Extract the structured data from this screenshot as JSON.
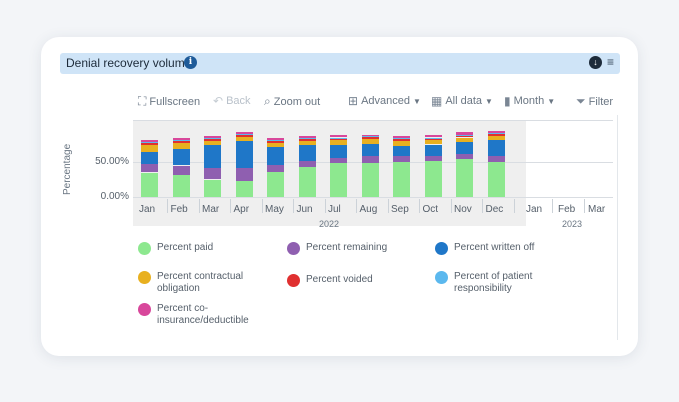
{
  "panel": {
    "title": "Denial recovery volume",
    "info_icon": "i",
    "download_icon": "↓",
    "menu_icon": "≡"
  },
  "toolbar": {
    "fullscreen": "Fullscreen",
    "back": "Back",
    "zoom_out": "Zoom out",
    "advanced": "Advanced",
    "all_data": "All data",
    "month": "Month",
    "filter": "Filter"
  },
  "colors": {
    "paid": "#8de88f",
    "remaining": "#8f5fb0",
    "written_off": "#1f77c8",
    "contractual": "#e8b020",
    "voided": "#e03030",
    "patient": "#5bb8ee",
    "coinsurance": "#d8479b"
  },
  "chart_data": {
    "type": "bar",
    "stacked": true,
    "ylabel": "Percentage",
    "yticks": [
      "0.00%",
      "50.00%"
    ],
    "categories": [
      "Jan",
      "Feb",
      "Mar",
      "Apr",
      "May",
      "Jun",
      "Jul",
      "Aug",
      "Sep",
      "Oct",
      "Nov",
      "Dec"
    ],
    "extra_ticks": [
      "Jan",
      "Feb",
      "Mar"
    ],
    "years": [
      "2022",
      "2023"
    ],
    "series": [
      {
        "name": "Percent paid",
        "color_key": "paid",
        "values": [
          35,
          31,
          25,
          23,
          36,
          43,
          48,
          48,
          50,
          51,
          54,
          50
        ]
      },
      {
        "name": "Percent remaining",
        "color_key": "remaining",
        "values": [
          12,
          14,
          16,
          18,
          10,
          8,
          8,
          10,
          9,
          7,
          8,
          9
        ]
      },
      {
        "name": "Percent written off",
        "color_key": "written_off",
        "values": [
          17,
          23,
          33,
          39,
          26,
          23,
          18,
          18,
          14,
          17,
          17,
          23
        ]
      },
      {
        "name": "Percent contractual obligation",
        "color_key": "contractual",
        "values": [
          10,
          9,
          6,
          6,
          5,
          6,
          7,
          7,
          7,
          6,
          6,
          5
        ]
      },
      {
        "name": "Percent voided",
        "color_key": "voided",
        "values": [
          3,
          3,
          3,
          3,
          3,
          3,
          3,
          3,
          3,
          3,
          3,
          3
        ]
      },
      {
        "name": "Percent of patient responsibility",
        "color_key": "patient",
        "values": [
          1,
          1,
          1,
          1,
          1,
          1,
          1,
          1,
          1,
          1,
          1,
          1
        ]
      },
      {
        "name": "Percent co-insurance/deductible",
        "color_key": "coinsurance",
        "values": [
          4,
          3,
          3,
          3,
          3,
          3,
          3,
          2,
          3,
          3,
          4,
          3
        ]
      }
    ]
  },
  "legend": [
    {
      "label": "Percent paid",
      "color_key": "paid"
    },
    {
      "label": "Percent remaining",
      "color_key": "remaining"
    },
    {
      "label": "Percent written off",
      "color_key": "written_off"
    },
    {
      "label": "Percent contractual obligation",
      "color_key": "contractual"
    },
    {
      "label": "Percent voided",
      "color_key": "voided"
    },
    {
      "label": "Percent of patient responsibility",
      "color_key": "patient"
    },
    {
      "label": "Percent co-insurance/deductible",
      "color_key": "coinsurance"
    }
  ]
}
